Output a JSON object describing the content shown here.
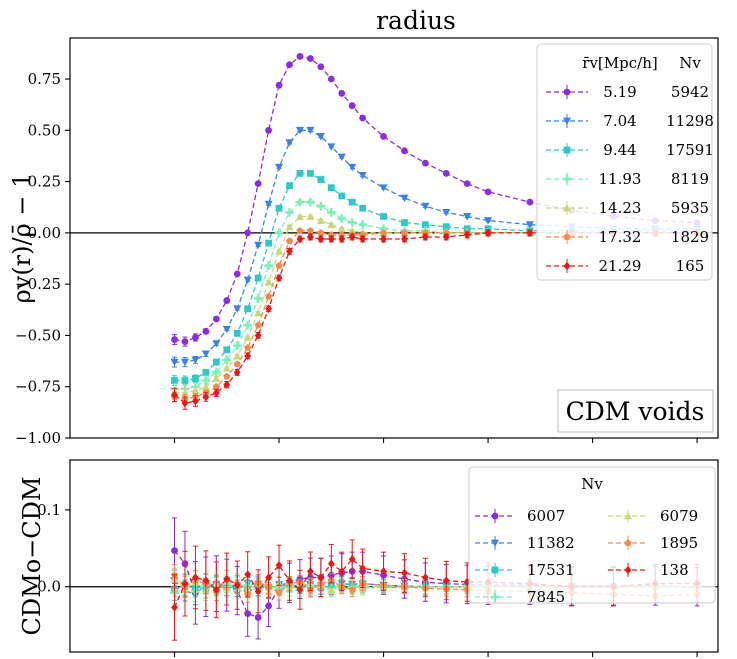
{
  "title": "radius",
  "chart_data": [
    {
      "type": "line",
      "name": "density-profiles",
      "ylabel": "ρv(r)/ρ̄ − 1",
      "xlabel": "",
      "xlim": [
        0,
        3.1
      ],
      "ylim": [
        -1.0,
        0.95
      ],
      "yticks": [
        -1.0,
        -0.75,
        -0.5,
        -0.25,
        0.0,
        0.25,
        0.5,
        0.75
      ],
      "ytick_labels": [
        "−1.00",
        "−0.75",
        "−0.50",
        "−0.25",
        "0.00",
        "0.25",
        "0.50",
        "0.75"
      ],
      "xticks": [
        0.5,
        1.0,
        1.5,
        2.0,
        2.5,
        3.0
      ],
      "annotation": "CDM voids",
      "legend": {
        "header_radius": "r̄v[Mpc/h]",
        "header_count": "Nv",
        "placement": "top-right"
      },
      "series": [
        {
          "name": "5.19",
          "count": "5942",
          "color": "#8b2be2",
          "marker": "circle",
          "x": [
            0.5,
            0.55,
            0.6,
            0.65,
            0.7,
            0.75,
            0.8,
            0.85,
            0.9,
            0.95,
            1.0,
            1.05,
            1.1,
            1.15,
            1.2,
            1.25,
            1.3,
            1.35,
            1.4,
            1.5,
            1.6,
            1.7,
            1.8,
            1.9,
            2.0,
            2.2,
            2.4,
            2.6,
            2.8,
            3.0
          ],
          "y": [
            -0.52,
            -0.53,
            -0.51,
            -0.48,
            -0.42,
            -0.33,
            -0.2,
            0.0,
            0.24,
            0.5,
            0.72,
            0.82,
            0.86,
            0.85,
            0.81,
            0.75,
            0.68,
            0.62,
            0.56,
            0.47,
            0.4,
            0.34,
            0.29,
            0.24,
            0.2,
            0.15,
            0.11,
            0.08,
            0.06,
            0.05
          ]
        },
        {
          "name": "7.04",
          "count": "11298",
          "color": "#3a82e8",
          "marker": "triangle-down",
          "x": [
            0.5,
            0.55,
            0.6,
            0.65,
            0.7,
            0.75,
            0.8,
            0.85,
            0.9,
            0.95,
            1.0,
            1.05,
            1.1,
            1.15,
            1.2,
            1.25,
            1.3,
            1.35,
            1.4,
            1.5,
            1.6,
            1.7,
            1.8,
            1.9,
            2.0,
            2.2,
            2.4,
            2.6,
            2.8,
            3.0
          ],
          "y": [
            -0.63,
            -0.63,
            -0.62,
            -0.59,
            -0.54,
            -0.47,
            -0.37,
            -0.23,
            -0.06,
            0.14,
            0.32,
            0.44,
            0.5,
            0.5,
            0.47,
            0.42,
            0.37,
            0.32,
            0.28,
            0.22,
            0.17,
            0.13,
            0.1,
            0.08,
            0.06,
            0.04,
            0.03,
            0.02,
            0.02,
            0.02
          ]
        },
        {
          "name": "9.44",
          "count": "17591",
          "color": "#2ec8c8",
          "marker": "square",
          "x": [
            0.5,
            0.55,
            0.6,
            0.65,
            0.7,
            0.75,
            0.8,
            0.85,
            0.9,
            0.95,
            1.0,
            1.05,
            1.1,
            1.15,
            1.2,
            1.25,
            1.3,
            1.35,
            1.4,
            1.5,
            1.6,
            1.7,
            1.8,
            1.9,
            2.0,
            2.2,
            2.4,
            2.6,
            2.8,
            3.0
          ],
          "y": [
            -0.72,
            -0.72,
            -0.71,
            -0.68,
            -0.63,
            -0.57,
            -0.49,
            -0.37,
            -0.22,
            -0.05,
            0.12,
            0.23,
            0.29,
            0.29,
            0.26,
            0.22,
            0.18,
            0.15,
            0.12,
            0.08,
            0.05,
            0.04,
            0.03,
            0.02,
            0.02,
            0.01,
            0.01,
            0.01,
            0.01,
            0.01
          ]
        },
        {
          "name": "11.93",
          "count": "8119",
          "color": "#7ef0b8",
          "marker": "plus",
          "x": [
            0.5,
            0.55,
            0.6,
            0.65,
            0.7,
            0.75,
            0.8,
            0.85,
            0.9,
            0.95,
            1.0,
            1.05,
            1.1,
            1.15,
            1.2,
            1.25,
            1.3,
            1.35,
            1.4,
            1.5,
            1.6,
            1.7,
            1.8,
            1.9,
            2.0,
            2.2,
            2.4,
            2.6,
            2.8,
            3.0
          ],
          "y": [
            -0.76,
            -0.76,
            -0.75,
            -0.72,
            -0.68,
            -0.62,
            -0.55,
            -0.45,
            -0.32,
            -0.16,
            0.0,
            0.1,
            0.15,
            0.15,
            0.13,
            0.1,
            0.07,
            0.05,
            0.04,
            0.02,
            0.01,
            0.01,
            0.0,
            0.0,
            0.0,
            0.0,
            0.0,
            0.0,
            0.0,
            0.0
          ]
        },
        {
          "name": "14.23",
          "count": "5935",
          "color": "#c8d878",
          "marker": "triangle-up",
          "x": [
            0.5,
            0.55,
            0.6,
            0.65,
            0.7,
            0.75,
            0.8,
            0.85,
            0.9,
            0.95,
            1.0,
            1.05,
            1.1,
            1.15,
            1.2,
            1.25,
            1.3,
            1.35,
            1.4,
            1.5,
            1.6,
            1.7,
            1.8,
            1.9,
            2.0,
            2.2,
            2.4,
            2.6,
            2.8,
            3.0
          ],
          "y": [
            -0.78,
            -0.78,
            -0.77,
            -0.75,
            -0.71,
            -0.66,
            -0.6,
            -0.51,
            -0.39,
            -0.24,
            -0.09,
            0.03,
            0.08,
            0.08,
            0.06,
            0.04,
            0.02,
            0.01,
            0.0,
            0.0,
            0.0,
            0.0,
            0.0,
            0.0,
            0.0,
            0.0,
            0.0,
            0.0,
            0.0,
            0.0
          ]
        },
        {
          "name": "17.32",
          "count": "1829",
          "color": "#f58a4a",
          "marker": "pentagon",
          "x": [
            0.5,
            0.55,
            0.6,
            0.65,
            0.7,
            0.75,
            0.8,
            0.85,
            0.9,
            0.95,
            1.0,
            1.05,
            1.1,
            1.15,
            1.2,
            1.25,
            1.3,
            1.35,
            1.4,
            1.5,
            1.6,
            1.7,
            1.8,
            1.9,
            2.0,
            2.2,
            2.4,
            2.6,
            2.8,
            3.0
          ],
          "y": [
            -0.8,
            -0.81,
            -0.8,
            -0.78,
            -0.75,
            -0.7,
            -0.64,
            -0.56,
            -0.45,
            -0.31,
            -0.16,
            -0.04,
            0.01,
            0.01,
            0.0,
            -0.01,
            -0.01,
            -0.01,
            -0.01,
            0.0,
            0.0,
            0.0,
            0.0,
            0.0,
            0.0,
            0.0,
            0.0,
            0.0,
            0.0,
            0.0
          ]
        },
        {
          "name": "21.29",
          "count": "165",
          "color": "#e81818",
          "marker": "diamond",
          "x": [
            0.5,
            0.55,
            0.6,
            0.65,
            0.7,
            0.75,
            0.8,
            0.85,
            0.9,
            0.95,
            1.0,
            1.05,
            1.1,
            1.15,
            1.2,
            1.25,
            1.3,
            1.35,
            1.4,
            1.5,
            1.6,
            1.7,
            1.8,
            1.9,
            2.0,
            2.2,
            2.4,
            2.6,
            2.8,
            3.0
          ],
          "y": [
            -0.79,
            -0.83,
            -0.82,
            -0.8,
            -0.78,
            -0.74,
            -0.68,
            -0.6,
            -0.5,
            -0.37,
            -0.22,
            -0.09,
            -0.03,
            -0.02,
            -0.03,
            -0.03,
            -0.03,
            -0.02,
            -0.03,
            -0.03,
            -0.03,
            -0.02,
            -0.02,
            -0.01,
            0.0,
            0.0,
            0.0,
            0.0,
            0.0,
            0.0
          ]
        }
      ]
    },
    {
      "type": "line",
      "name": "difference-profiles",
      "ylabel": "CDMo−CDM",
      "xlabel": "",
      "xlim": [
        0,
        3.1
      ],
      "ylim": [
        -0.085,
        0.165
      ],
      "yticks": [
        0.0,
        0.1
      ],
      "ytick_labels": [
        "0.0",
        "0.1"
      ],
      "xticks": [
        0.5,
        1.0,
        1.5,
        2.0,
        2.5,
        3.0
      ],
      "legend": {
        "header_count": "Nv",
        "placement": "top-right",
        "columns": 2
      },
      "series": [
        {
          "name": "6007",
          "color": "#8b2be2",
          "marker": "circle",
          "x": [
            0.5,
            0.55,
            0.6,
            0.65,
            0.7,
            0.75,
            0.8,
            0.85,
            0.9,
            0.95,
            1.0,
            1.05,
            1.1,
            1.15,
            1.2,
            1.25,
            1.3,
            1.35,
            1.4,
            1.5,
            1.6,
            1.7,
            1.8,
            1.9,
            2.0,
            2.2,
            2.4,
            2.6,
            2.8,
            3.0
          ],
          "y": [
            0.047,
            0.03,
            -0.008,
            0.0,
            0.004,
            0.002,
            -0.005,
            -0.035,
            -0.04,
            -0.025,
            -0.002,
            0.005,
            0.01,
            0.012,
            0.012,
            0.015,
            0.018,
            0.02,
            0.02,
            0.015,
            0.01,
            0.006,
            0.004,
            0.003,
            0.002,
            0.002,
            0.001,
            0.001,
            0.001,
            0.0
          ]
        },
        {
          "name": "11382",
          "color": "#3a82e8",
          "marker": "triangle-down",
          "x": [
            0.5,
            0.55,
            0.6,
            0.65,
            0.7,
            0.75,
            0.8,
            0.85,
            0.9,
            0.95,
            1.0,
            1.05,
            1.1,
            1.15,
            1.2,
            1.25,
            1.3,
            1.35,
            1.4,
            1.5,
            1.6,
            1.7,
            1.8,
            1.9,
            2.0,
            2.2,
            2.4,
            2.6,
            2.8,
            3.0
          ],
          "y": [
            0.008,
            -0.005,
            -0.01,
            0.004,
            0.003,
            0.0,
            -0.002,
            0.004,
            0.003,
            -0.004,
            0.003,
            0.004,
            0.002,
            0.003,
            0.0,
            0.002,
            0.004,
            0.003,
            0.004,
            0.002,
            0.001,
            0.0,
            0.0,
            0.0,
            0.0,
            0.0,
            0.0,
            0.0,
            0.0,
            0.0
          ]
        },
        {
          "name": "17531",
          "color": "#2ec8c8",
          "marker": "square",
          "x": [
            0.5,
            0.55,
            0.6,
            0.65,
            0.7,
            0.75,
            0.8,
            0.85,
            0.9,
            0.95,
            1.0,
            1.05,
            1.1,
            1.15,
            1.2,
            1.25,
            1.3,
            1.35,
            1.4,
            1.5,
            1.6,
            1.7,
            1.8,
            1.9,
            2.0,
            2.2,
            2.4,
            2.6,
            2.8,
            3.0
          ],
          "y": [
            -0.004,
            0.002,
            0.0,
            -0.002,
            0.001,
            0.0,
            0.002,
            -0.001,
            0.001,
            0.0,
            -0.002,
            0.002,
            0.0,
            0.0,
            -0.001,
            0.001,
            0.0,
            0.0,
            0.001,
            0.0,
            0.0,
            0.0,
            0.0,
            0.0,
            0.0,
            0.0,
            0.0,
            0.0,
            0.0,
            0.0
          ]
        },
        {
          "name": "7845",
          "color": "#7ef0b8",
          "marker": "plus",
          "x": [
            0.5,
            0.55,
            0.6,
            0.65,
            0.7,
            0.75,
            0.8,
            0.85,
            0.9,
            0.95,
            1.0,
            1.05,
            1.1,
            1.15,
            1.2,
            1.25,
            1.3,
            1.35,
            1.4,
            1.5,
            1.6,
            1.7,
            1.8,
            1.9,
            2.0,
            2.2,
            2.4,
            2.6,
            2.8,
            3.0
          ],
          "y": [
            -0.008,
            0.004,
            -0.006,
            0.003,
            0.0,
            0.004,
            -0.005,
            0.002,
            -0.003,
            0.001,
            -0.002,
            0.003,
            -0.004,
            0.002,
            0.0,
            -0.002,
            0.003,
            -0.001,
            0.0,
            0.001,
            0.0,
            0.0,
            0.0,
            0.0,
            0.0,
            0.0,
            0.0,
            0.0,
            0.0,
            0.0
          ]
        },
        {
          "name": "6079",
          "color": "#c8d878",
          "marker": "triangle-up",
          "x": [
            0.5,
            0.55,
            0.6,
            0.65,
            0.7,
            0.75,
            0.8,
            0.85,
            0.9,
            0.95,
            1.0,
            1.05,
            1.1,
            1.15,
            1.2,
            1.25,
            1.3,
            1.35,
            1.4,
            1.5,
            1.6,
            1.7,
            1.8,
            1.9,
            2.0,
            2.2,
            2.4,
            2.6,
            2.8,
            3.0
          ],
          "y": [
            0.01,
            -0.004,
            0.006,
            -0.005,
            0.004,
            -0.002,
            0.006,
            -0.004,
            0.005,
            -0.006,
            0.004,
            -0.003,
            0.005,
            -0.002,
            0.003,
            -0.004,
            0.002,
            0.0,
            -0.002,
            0.001,
            0.0,
            0.0,
            0.0,
            0.0,
            0.0,
            0.0,
            0.0,
            0.0,
            0.0,
            0.0
          ]
        },
        {
          "name": "1895",
          "color": "#f58a4a",
          "marker": "pentagon",
          "x": [
            0.5,
            0.55,
            0.6,
            0.65,
            0.7,
            0.75,
            0.8,
            0.85,
            0.9,
            0.95,
            1.0,
            1.05,
            1.1,
            1.15,
            1.2,
            1.25,
            1.3,
            1.35,
            1.4,
            1.5,
            1.6,
            1.7,
            1.8,
            1.9,
            2.0,
            2.2,
            2.4,
            2.6,
            2.8,
            3.0
          ],
          "y": [
            0.015,
            0.0,
            0.008,
            0.004,
            -0.006,
            0.01,
            0.004,
            -0.01,
            0.006,
            0.0,
            -0.008,
            0.004,
            0.006,
            -0.004,
            0.004,
            0.008,
            0.0,
            -0.004,
            0.004,
            0.002,
            0.0,
            -0.002,
            -0.003,
            -0.004,
            -0.005,
            -0.006,
            -0.008,
            -0.01,
            -0.012,
            -0.01
          ]
        },
        {
          "name": "138",
          "color": "#e81818",
          "marker": "diamond",
          "x": [
            0.5,
            0.55,
            0.6,
            0.65,
            0.7,
            0.75,
            0.8,
            0.85,
            0.9,
            0.95,
            1.0,
            1.05,
            1.1,
            1.15,
            1.2,
            1.25,
            1.3,
            1.35,
            1.4,
            1.5,
            1.6,
            1.7,
            1.8,
            1.9,
            2.0,
            2.2,
            2.4,
            2.6,
            2.8,
            3.0
          ],
          "y": [
            -0.027,
            0.004,
            0.012,
            0.008,
            -0.004,
            0.01,
            0.002,
            0.016,
            -0.006,
            0.012,
            0.028,
            0.008,
            -0.004,
            0.02,
            0.012,
            0.03,
            0.02,
            0.036,
            0.024,
            0.02,
            0.018,
            0.012,
            0.008,
            0.006,
            0.006,
            0.004,
            0.0,
            0.0,
            0.004,
            0.004
          ]
        }
      ]
    }
  ]
}
